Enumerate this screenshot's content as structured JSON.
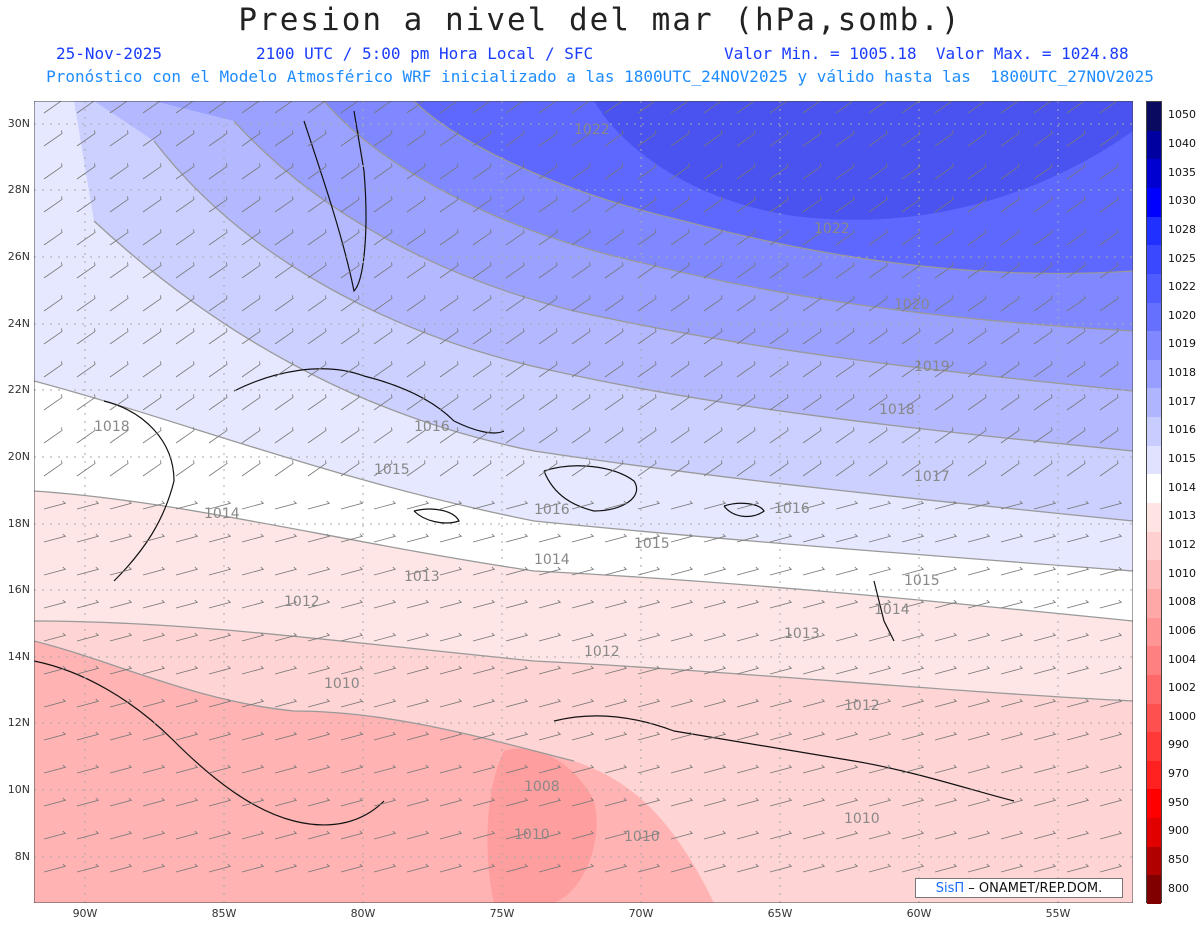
{
  "header": {
    "title": "Presion a nivel del mar (hPa,somb.)",
    "date": "25-Nov-2025",
    "time": "2100 UTC / 5:00 pm Hora Local / SFC",
    "minmax": "Valor Min. = 1005.18  Valor Max. = 1024.88",
    "model_line": "Pronóstico con el Modelo Atmosférico WRF inicializado a las 1800UTC_24NOV2025 y válido hasta las  1800UTC_27NOV2025"
  },
  "axes": {
    "lat_labels": [
      "30N",
      "28N",
      "26N",
      "24N",
      "22N",
      "20N",
      "18N",
      "16N",
      "14N",
      "12N",
      "10N",
      "8N"
    ],
    "lon_labels": [
      "90W",
      "85W",
      "80W",
      "75W",
      "70W",
      "65W",
      "60W",
      "55W"
    ]
  },
  "colorbar": {
    "labels": [
      "1050",
      "1040",
      "1035",
      "1030",
      "1028",
      "1025",
      "1022",
      "1020",
      "1019",
      "1018",
      "1017",
      "1016",
      "1015",
      "1014",
      "1013",
      "1012",
      "1010",
      "1008",
      "1006",
      "1004",
      "1002",
      "1000",
      "990",
      "970",
      "950",
      "900",
      "850",
      "800"
    ],
    "colors": [
      "#0a0a60",
      "#0000a0",
      "#0000d0",
      "#0000ff",
      "#2030ff",
      "#3a48ff",
      "#4f5cff",
      "#6670ff",
      "#7f88ff",
      "#979eff",
      "#b0b5ff",
      "#c8ccff",
      "#e0e2ff",
      "#ffffff",
      "#ffe4e4",
      "#ffd0d0",
      "#ffbcbc",
      "#ffa8a8",
      "#ff9494",
      "#ff8080",
      "#ff6868",
      "#ff5050",
      "#ff3838",
      "#ff2020",
      "#ff0000",
      "#e00000",
      "#b00000",
      "#800000"
    ]
  },
  "contour_labels": [
    "1022",
    "1022",
    "1020",
    "1019",
    "1018",
    "1018",
    "1017",
    "1016",
    "1016",
    "1016",
    "1015",
    "1015",
    "1015",
    "1014",
    "1014",
    "1014",
    "1013",
    "1013",
    "1012",
    "1012",
    "1012",
    "1010",
    "1010",
    "1008",
    "1010",
    "1010"
  ],
  "credit": {
    "sis": "SisΠ",
    "org": "– ONAMET/REP.DOM."
  }
}
